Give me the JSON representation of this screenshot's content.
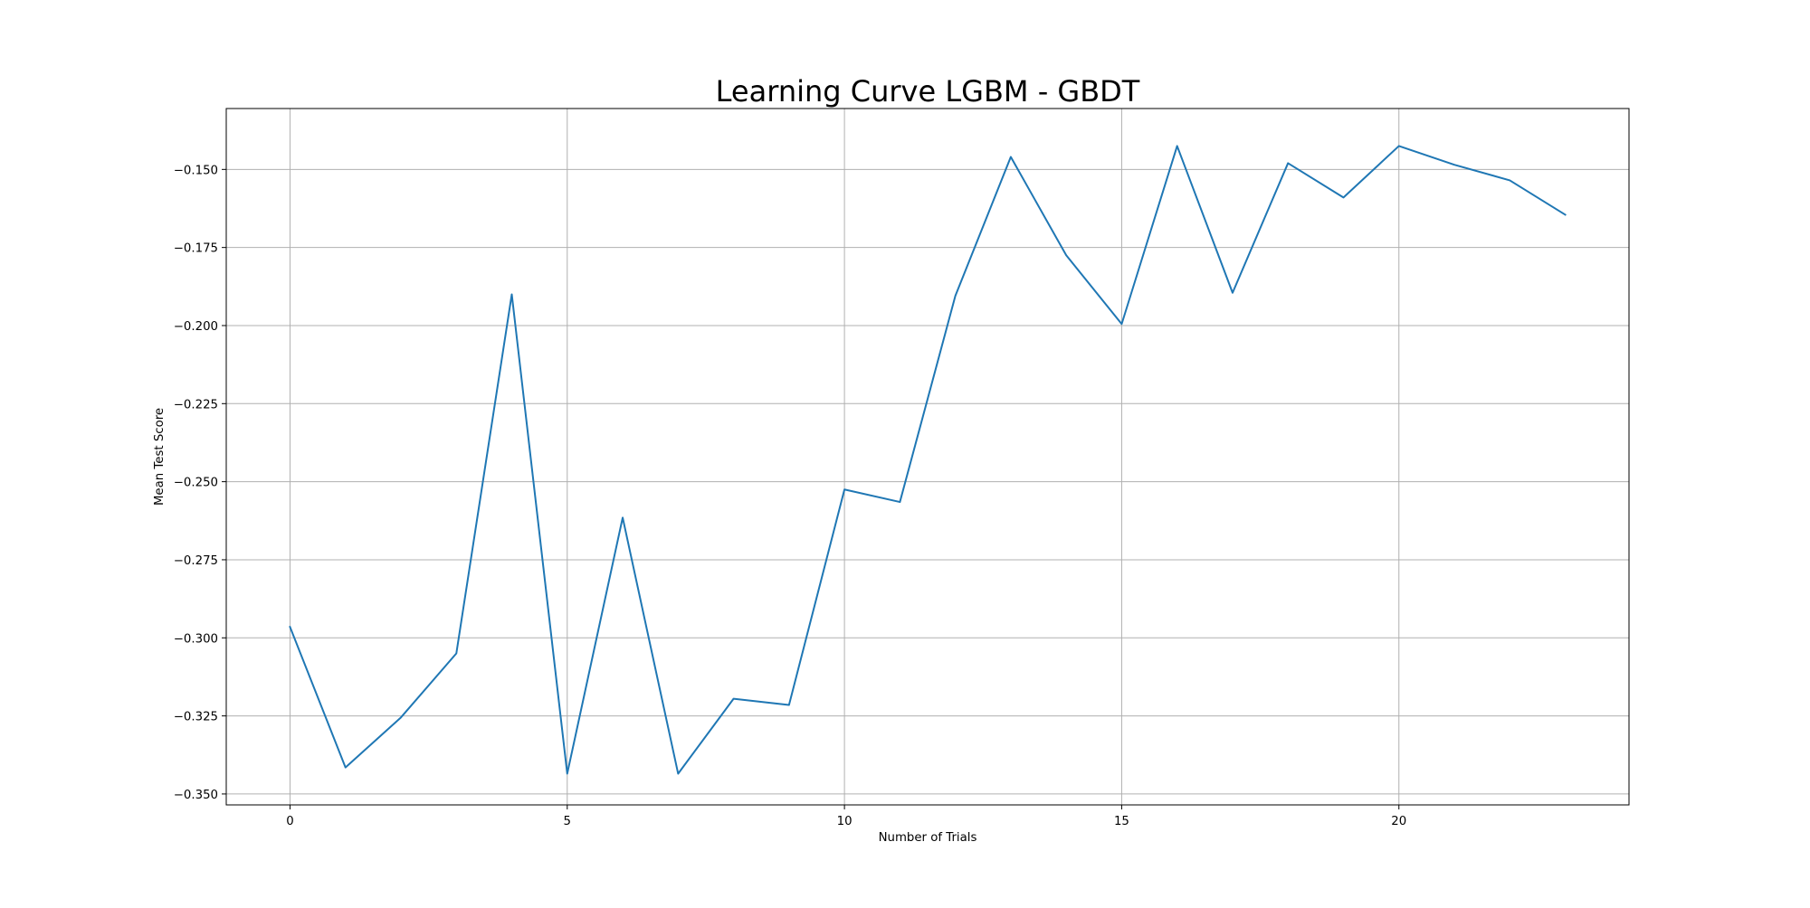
{
  "chart_data": {
    "type": "line",
    "title": "Learning Curve LGBM - GBDT",
    "xlabel": "Number of Trials",
    "ylabel": "Mean Test Score",
    "xlim": [
      -1.15,
      24.15
    ],
    "ylim": [
      -0.3535,
      -0.1305
    ],
    "xticks": [
      0,
      5,
      10,
      15,
      20
    ],
    "xtick_labels": [
      "0",
      "5",
      "10",
      "15",
      "20"
    ],
    "yticks": [
      -0.35,
      -0.325,
      -0.3,
      -0.275,
      -0.25,
      -0.225,
      -0.2,
      -0.175,
      -0.15
    ],
    "ytick_labels": [
      "−0.350",
      "−0.325",
      "−0.300",
      "−0.275",
      "−0.250",
      "−0.225",
      "−0.200",
      "−0.175",
      "−0.150"
    ],
    "grid": true,
    "series": [
      {
        "color": "#1f77b4",
        "x": [
          0,
          1,
          2,
          3,
          4,
          5,
          6,
          7,
          8,
          9,
          10,
          11,
          12,
          13,
          14,
          15,
          16,
          17,
          18,
          19,
          20,
          21,
          22,
          23
        ],
        "y": [
          -0.2965,
          -0.3415,
          -0.3255,
          -0.305,
          -0.19,
          -0.3435,
          -0.2615,
          -0.3435,
          -0.3195,
          -0.3215,
          -0.2525,
          -0.2565,
          -0.1905,
          -0.146,
          -0.1775,
          -0.1995,
          -0.1425,
          -0.1895,
          -0.148,
          -0.159,
          -0.1425,
          -0.1485,
          -0.1535,
          -0.1645
        ]
      }
    ]
  }
}
